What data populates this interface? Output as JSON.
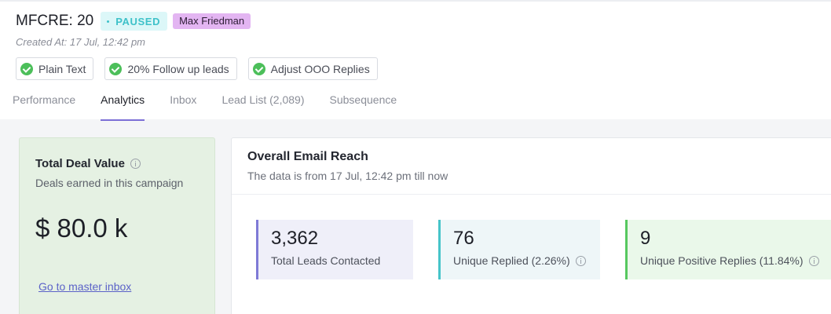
{
  "campaign": {
    "title": "MFCRE: 20",
    "status": "PAUSED",
    "owner": "Max Friedman",
    "created": "Created At: 17 Jul, 12:42 pm"
  },
  "chips": [
    {
      "label": "Plain Text",
      "icon": "check-circle-icon"
    },
    {
      "label": "20% Follow up leads",
      "icon": "check-circle-icon"
    },
    {
      "label": "Adjust OOO Replies",
      "icon": "check-circle-icon"
    }
  ],
  "tabs": [
    {
      "label": "Performance",
      "active": false
    },
    {
      "label": "Analytics",
      "active": true
    },
    {
      "label": "Inbox",
      "active": false
    },
    {
      "label": "Lead List (2,089)",
      "active": false
    },
    {
      "label": "Subsequence",
      "active": false
    }
  ],
  "deal": {
    "title": "Total Deal Value",
    "subtitle": "Deals earned in this campaign",
    "value": "$ 80.0 k",
    "link": "Go to master inbox"
  },
  "reach": {
    "title": "Overall Email Reach",
    "subtitle": "The data is from 17 Jul, 12:42 pm till now",
    "stats": [
      {
        "value": "3,362",
        "label": "Total Leads Contacted",
        "color": "#7f7ad6"
      },
      {
        "value": "76",
        "label": "Unique Replied (2.26%)",
        "color": "#46c4c9"
      },
      {
        "value": "9",
        "label": "Unique Positive Replies (11.84%)",
        "color": "#56c85f"
      }
    ]
  },
  "colors": {
    "status_bg": "#dcf7f8",
    "status_text": "#3ec1c9",
    "owner_bg": "#e3b5f2",
    "tab_accent": "#7c6fd6",
    "check": "#4cbf5a",
    "deal_card_bg": "#e5f1e3",
    "link": "#5b62c8"
  }
}
